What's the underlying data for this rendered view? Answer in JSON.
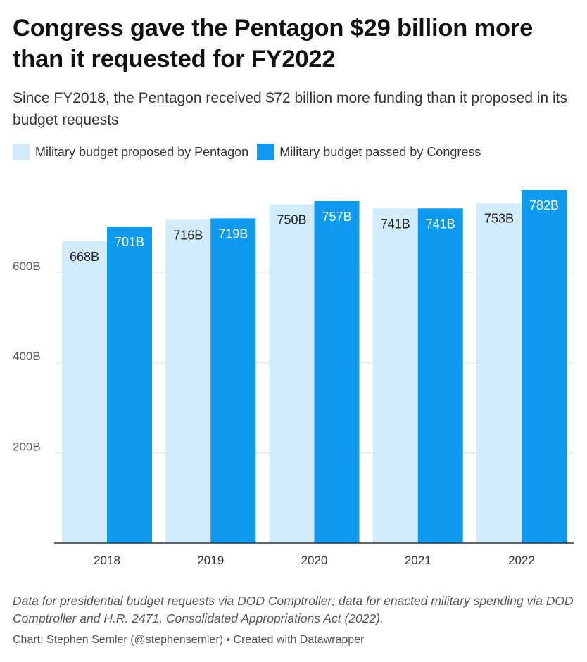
{
  "chart_data": {
    "type": "bar",
    "title": "Congress gave the Pentagon $29 billion more than it requested for FY2022",
    "subtitle": "Since FY2018, the Pentagon received $72 billion more funding than it proposed in its budget requests",
    "categories": [
      "2018",
      "2019",
      "2020",
      "2021",
      "2022"
    ],
    "series": [
      {
        "name": "Military budget proposed by Pentagon",
        "values": [
          668,
          716,
          750,
          741,
          753
        ],
        "labels": [
          "668B",
          "716B",
          "750B",
          "741B",
          "753B"
        ],
        "color": "#d3ecfb",
        "label_color": "#222222"
      },
      {
        "name": "Military budget passed by Congress",
        "values": [
          701,
          719,
          757,
          741,
          782
        ],
        "labels": [
          "701B",
          "719B",
          "757B",
          "741B",
          "782B"
        ],
        "color": "#0d9aef",
        "label_color": "#ffffff"
      }
    ],
    "y_ticks": [
      200,
      400,
      600
    ],
    "y_tick_labels": [
      "200B",
      "400B",
      "600B"
    ],
    "ylim": [
      0,
      800
    ],
    "grid": true,
    "legend_position": "top-left"
  },
  "notes": "Data for presidential budget requests via DOD Comptroller; data for enacted military spending via DOD Comptroller and H.R. 2471, Consolidated Appropriations Act (2022).",
  "credit": "Chart: Stephen Semler (@stephensemler) • Created with Datawrapper"
}
